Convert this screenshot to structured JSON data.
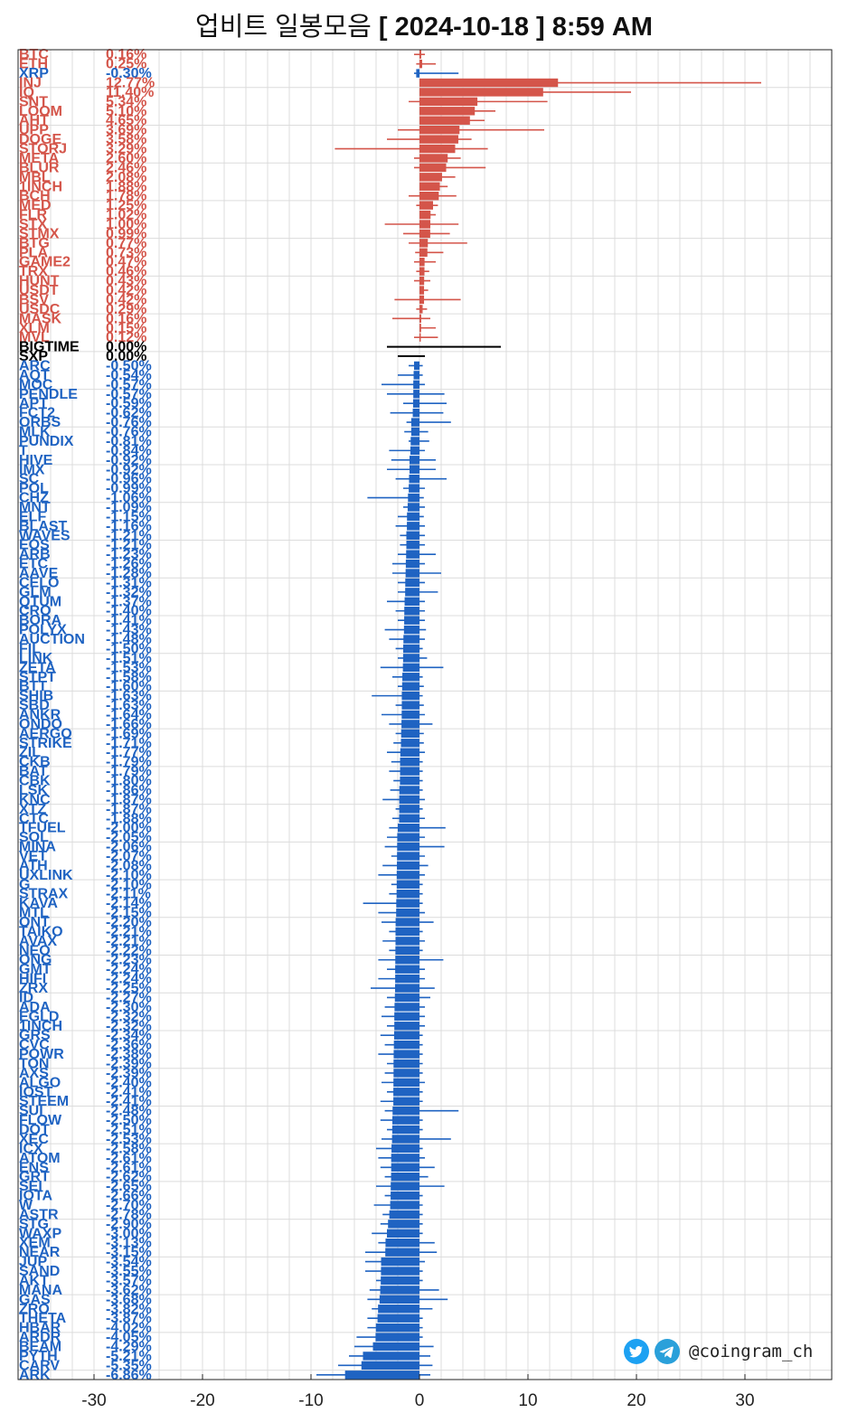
{
  "title": {
    "prefix": "업비트 일봉모음",
    "date_text": "[ 2024-10-18 ]  8:59 AM"
  },
  "brand": {
    "handle": "@coingram_ch",
    "icons": [
      "twitter-icon",
      "telegram-icon"
    ]
  },
  "colors": {
    "positive": "#d4554a",
    "negative": "#1f63c2",
    "neutral": "#000000",
    "grid": "#dcdcdc"
  },
  "chart_data": {
    "type": "bar",
    "orientation": "horizontal",
    "xlim": [
      -37,
      38
    ],
    "xticks": [
      -30,
      -20,
      -10,
      0,
      10,
      20,
      30
    ],
    "grid": true,
    "items": [
      {
        "name": "BTC",
        "pct": "0.16%",
        "value": 0.16,
        "low": -0.5,
        "high": 0.5
      },
      {
        "name": "ETH",
        "pct": "0.25%",
        "value": 0.25,
        "low": -0.3,
        "high": 1.5
      },
      {
        "name": "XRP",
        "pct": "-0.30%",
        "value": -0.3,
        "low": -0.5,
        "high": 3.6
      },
      {
        "name": "INJ",
        "pct": "12.77%",
        "value": 12.77,
        "low": 0,
        "high": 31.5
      },
      {
        "name": "IQ",
        "pct": "11.40%",
        "value": 11.4,
        "low": 0,
        "high": 19.5
      },
      {
        "name": "SNT",
        "pct": "5.34%",
        "value": 5.34,
        "low": -1.0,
        "high": 11.8
      },
      {
        "name": "LOOM",
        "pct": "5.10%",
        "value": 5.1,
        "low": 0,
        "high": 7.0
      },
      {
        "name": "AHT",
        "pct": "4.65%",
        "value": 4.65,
        "low": 0,
        "high": 6.0
      },
      {
        "name": "UPP",
        "pct": "3.69%",
        "value": 3.69,
        "low": -2.0,
        "high": 11.5
      },
      {
        "name": "DOGE",
        "pct": "3.58%",
        "value": 3.58,
        "low": -3.0,
        "high": 4.8
      },
      {
        "name": "STORJ",
        "pct": "3.29%",
        "value": 3.29,
        "low": -7.8,
        "high": 6.3
      },
      {
        "name": "META",
        "pct": "2.60%",
        "value": 2.6,
        "low": -0.5,
        "high": 3.8
      },
      {
        "name": "BLUR",
        "pct": "2.46%",
        "value": 2.46,
        "low": -0.5,
        "high": 6.1
      },
      {
        "name": "MBL",
        "pct": "2.08%",
        "value": 2.08,
        "low": 0,
        "high": 3.3
      },
      {
        "name": "1INCH",
        "pct": "1.88%",
        "value": 1.88,
        "low": 0,
        "high": 2.6
      },
      {
        "name": "BCH",
        "pct": "1.78%",
        "value": 1.78,
        "low": -1.0,
        "high": 3.4
      },
      {
        "name": "MED",
        "pct": "1.25%",
        "value": 1.25,
        "low": -0.3,
        "high": 1.7
      },
      {
        "name": "FLR",
        "pct": "1.02%",
        "value": 1.02,
        "low": 0,
        "high": 1.5
      },
      {
        "name": "STX",
        "pct": "1.00%",
        "value": 1.0,
        "low": -3.2,
        "high": 3.6
      },
      {
        "name": "STMX",
        "pct": "0.99%",
        "value": 0.99,
        "low": -1.5,
        "high": 2.8
      },
      {
        "name": "BTG",
        "pct": "0.77%",
        "value": 0.77,
        "low": -1.0,
        "high": 4.4
      },
      {
        "name": "PLA",
        "pct": "0.73%",
        "value": 0.73,
        "low": -0.4,
        "high": 2.2
      },
      {
        "name": "GAME2",
        "pct": "0.47%",
        "value": 0.47,
        "low": -0.5,
        "high": 1.5
      },
      {
        "name": "TRX",
        "pct": "0.46%",
        "value": 0.46,
        "low": -0.3,
        "high": 0.9
      },
      {
        "name": "HUNT",
        "pct": "0.43%",
        "value": 0.43,
        "low": -0.5,
        "high": 1.0
      },
      {
        "name": "USDT",
        "pct": "0.42%",
        "value": 0.42,
        "low": 0,
        "high": 0.8
      },
      {
        "name": "BSV",
        "pct": "0.42%",
        "value": 0.42,
        "low": -2.3,
        "high": 3.8
      },
      {
        "name": "USDC",
        "pct": "0.29%",
        "value": 0.29,
        "low": -0.3,
        "high": 0.7
      },
      {
        "name": "MASK",
        "pct": "0.16%",
        "value": 0.16,
        "low": -2.5,
        "high": 1.0
      },
      {
        "name": "XLM",
        "pct": "0.15%",
        "value": 0.15,
        "low": 0,
        "high": 1.5
      },
      {
        "name": "MVL",
        "pct": "0.12%",
        "value": 0.12,
        "low": -0.5,
        "high": 1.7
      },
      {
        "name": "BIGTIME",
        "pct": "0.00%",
        "value": 0.0,
        "low": -3.0,
        "high": 7.5
      },
      {
        "name": "SXP",
        "pct": "0.00%",
        "value": 0.0,
        "low": -2.0,
        "high": 0.5
      },
      {
        "name": "ARC",
        "pct": "-0.50%",
        "value": -0.5,
        "low": -1.0,
        "high": 0.3
      },
      {
        "name": "AQT",
        "pct": "-0.54%",
        "value": -0.54,
        "low": -2.0,
        "high": 0.3
      },
      {
        "name": "MOC",
        "pct": "-0.57%",
        "value": -0.57,
        "low": -3.5,
        "high": 0.5
      },
      {
        "name": "PENDLE",
        "pct": "-0.57%",
        "value": -0.57,
        "low": -3.0,
        "high": 2.3
      },
      {
        "name": "APT",
        "pct": "-0.59%",
        "value": -0.59,
        "low": -1.5,
        "high": 2.5
      },
      {
        "name": "FCT2",
        "pct": "-0.62%",
        "value": -0.62,
        "low": -2.7,
        "high": 2.2
      },
      {
        "name": "ORBS",
        "pct": "-0.76%",
        "value": -0.76,
        "low": -1.2,
        "high": 2.9
      },
      {
        "name": "MLK",
        "pct": "-0.76%",
        "value": -0.76,
        "low": -1.4,
        "high": 0.8
      },
      {
        "name": "PUNDIX",
        "pct": "-0.81%",
        "value": -0.81,
        "low": -1.0,
        "high": 0.9
      },
      {
        "name": "T",
        "pct": "-0.84%",
        "value": -0.84,
        "low": -2.8,
        "high": 0.5
      },
      {
        "name": "HIVE",
        "pct": "-0.92%",
        "value": -0.92,
        "low": -2.6,
        "high": 1.5
      },
      {
        "name": "IMX",
        "pct": "-0.92%",
        "value": -0.92,
        "low": -3.0,
        "high": 1.5
      },
      {
        "name": "SC",
        "pct": "-0.96%",
        "value": -0.96,
        "low": -2.2,
        "high": 2.5
      },
      {
        "name": "POL",
        "pct": "-0.99%",
        "value": -0.99,
        "low": -1.5,
        "high": 0.5
      },
      {
        "name": "CHZ",
        "pct": "-1.06%",
        "value": -1.06,
        "low": -4.8,
        "high": 0.4
      },
      {
        "name": "MNT",
        "pct": "-1.09%",
        "value": -1.09,
        "low": -1.5,
        "high": 0.5
      },
      {
        "name": "ELF",
        "pct": "-1.15%",
        "value": -1.15,
        "low": -2.0,
        "high": 0.4
      },
      {
        "name": "BLAST",
        "pct": "-1.16%",
        "value": -1.16,
        "low": -2.2,
        "high": 0.5
      },
      {
        "name": "WAVES",
        "pct": "-1.21%",
        "value": -1.21,
        "low": -1.8,
        "high": 0.5
      },
      {
        "name": "EOS",
        "pct": "-1.21%",
        "value": -1.21,
        "low": -1.8,
        "high": 0.5
      },
      {
        "name": "ARB",
        "pct": "-1.23%",
        "value": -1.23,
        "low": -2.0,
        "high": 1.5
      },
      {
        "name": "ETC",
        "pct": "-1.26%",
        "value": -1.26,
        "low": -2.5,
        "high": 0.5
      },
      {
        "name": "AAVE",
        "pct": "-1.28%",
        "value": -1.28,
        "low": -2.5,
        "high": 2.0
      },
      {
        "name": "CELO",
        "pct": "-1.31%",
        "value": -1.31,
        "low": -2.0,
        "high": 0.5
      },
      {
        "name": "GLM",
        "pct": "-1.32%",
        "value": -1.32,
        "low": -2.0,
        "high": 1.7
      },
      {
        "name": "QTUM",
        "pct": "-1.37%",
        "value": -1.37,
        "low": -3.0,
        "high": 0.5
      },
      {
        "name": "CRO",
        "pct": "-1.40%",
        "value": -1.4,
        "low": -2.2,
        "high": 0.5
      },
      {
        "name": "BORA",
        "pct": "-1.41%",
        "value": -1.41,
        "low": -2.0,
        "high": 0.5
      },
      {
        "name": "POLYX",
        "pct": "-1.43%",
        "value": -1.43,
        "low": -3.2,
        "high": 0.6
      },
      {
        "name": "AUCTION",
        "pct": "-1.48%",
        "value": -1.48,
        "low": -2.8,
        "high": 0.5
      },
      {
        "name": "FIL",
        "pct": "-1.50%",
        "value": -1.5,
        "low": -2.2,
        "high": 0.3
      },
      {
        "name": "LINK",
        "pct": "-1.51%",
        "value": -1.51,
        "low": -2.0,
        "high": 0.7
      },
      {
        "name": "ZETA",
        "pct": "-1.53%",
        "value": -1.53,
        "low": -3.6,
        "high": 2.2
      },
      {
        "name": "STPT",
        "pct": "-1.58%",
        "value": -1.58,
        "low": -2.5,
        "high": 0.3
      },
      {
        "name": "BTT",
        "pct": "-1.60%",
        "value": -1.6,
        "low": -2.0,
        "high": 0.4
      },
      {
        "name": "SHIB",
        "pct": "-1.63%",
        "value": -1.63,
        "low": -4.4,
        "high": 0.3
      },
      {
        "name": "SBD",
        "pct": "-1.63%",
        "value": -1.63,
        "low": -2.2,
        "high": 0.4
      },
      {
        "name": "ANKR",
        "pct": "-1.64%",
        "value": -1.64,
        "low": -3.5,
        "high": 0.5
      },
      {
        "name": "ONDO",
        "pct": "-1.66%",
        "value": -1.66,
        "low": -2.8,
        "high": 1.2
      },
      {
        "name": "AERGO",
        "pct": "-1.69%",
        "value": -1.69,
        "low": -2.2,
        "high": 0.4
      },
      {
        "name": "STRIKE",
        "pct": "-1.71%",
        "value": -1.71,
        "low": -2.4,
        "high": 0.4
      },
      {
        "name": "ZIL",
        "pct": "-1.77%",
        "value": -1.77,
        "low": -3.0,
        "high": 0.5
      },
      {
        "name": "CKB",
        "pct": "-1.79%",
        "value": -1.79,
        "low": -2.6,
        "high": 0.3
      },
      {
        "name": "BAT",
        "pct": "-1.79%",
        "value": -1.79,
        "low": -2.8,
        "high": 0.3
      },
      {
        "name": "CBK",
        "pct": "-1.80%",
        "value": -1.8,
        "low": -2.4,
        "high": 0.3
      },
      {
        "name": "LSK",
        "pct": "-1.86%",
        "value": -1.86,
        "low": -2.7,
        "high": 0.3
      },
      {
        "name": "KNC",
        "pct": "-1.87%",
        "value": -1.87,
        "low": -3.4,
        "high": 0.5
      },
      {
        "name": "XTZ",
        "pct": "-1.87%",
        "value": -1.87,
        "low": -2.2,
        "high": 0.3
      },
      {
        "name": "CTC",
        "pct": "-1.88%",
        "value": -1.88,
        "low": -2.5,
        "high": 0.5
      },
      {
        "name": "TFUEL",
        "pct": "-2.00%",
        "value": -2.0,
        "low": -2.8,
        "high": 2.4
      },
      {
        "name": "SOL",
        "pct": "-2.05%",
        "value": -2.05,
        "low": -3.0,
        "high": 0.5
      },
      {
        "name": "MINA",
        "pct": "-2.06%",
        "value": -2.06,
        "low": -3.2,
        "high": 2.3
      },
      {
        "name": "VET",
        "pct": "-2.07%",
        "value": -2.07,
        "low": -2.6,
        "high": 0.5
      },
      {
        "name": "ATH",
        "pct": "-2.08%",
        "value": -2.08,
        "low": -3.4,
        "high": 0.8
      },
      {
        "name": "UXLINK",
        "pct": "-2.10%",
        "value": -2.1,
        "low": -3.8,
        "high": 0.5
      },
      {
        "name": "G",
        "pct": "-2.10%",
        "value": -2.1,
        "low": -2.6,
        "high": 0.3
      },
      {
        "name": "STRAX",
        "pct": "-2.11%",
        "value": -2.11,
        "low": -2.8,
        "high": 0.3
      },
      {
        "name": "KAVA",
        "pct": "-2.14%",
        "value": -2.14,
        "low": -5.2,
        "high": 0.3
      },
      {
        "name": "MTL",
        "pct": "-2.15%",
        "value": -2.15,
        "low": -3.8,
        "high": 0.5
      },
      {
        "name": "ONT",
        "pct": "-2.20%",
        "value": -2.2,
        "low": -3.5,
        "high": 1.3
      },
      {
        "name": "TAIKO",
        "pct": "-2.21%",
        "value": -2.21,
        "low": -2.8,
        "high": 0.3
      },
      {
        "name": "AVAX",
        "pct": "-2.21%",
        "value": -2.21,
        "low": -3.4,
        "high": 0.5
      },
      {
        "name": "NEO",
        "pct": "-2.22%",
        "value": -2.22,
        "low": -2.8,
        "high": 0.3
      },
      {
        "name": "ONG",
        "pct": "-2.23%",
        "value": -2.23,
        "low": -3.8,
        "high": 2.2
      },
      {
        "name": "GMT",
        "pct": "-2.24%",
        "value": -2.24,
        "low": -3.0,
        "high": 0.5
      },
      {
        "name": "HIFI",
        "pct": "-2.24%",
        "value": -2.24,
        "low": -3.8,
        "high": 0.5
      },
      {
        "name": "ZRX",
        "pct": "-2.25%",
        "value": -2.25,
        "low": -4.5,
        "high": 1.4
      },
      {
        "name": "ID",
        "pct": "-2.27%",
        "value": -2.27,
        "low": -3.0,
        "high": 1.0
      },
      {
        "name": "ADA",
        "pct": "-2.30%",
        "value": -2.3,
        "low": -3.2,
        "high": 0.5
      },
      {
        "name": "EGLD",
        "pct": "-2.32%",
        "value": -2.32,
        "low": -3.5,
        "high": 0.5
      },
      {
        "name": "1INCH",
        "pct": "-2.32%",
        "value": -2.32,
        "low": -3.0,
        "high": 0.5
      },
      {
        "name": "GRS",
        "pct": "-2.34%",
        "value": -2.34,
        "low": -3.6,
        "high": 0.3
      },
      {
        "name": "CVC",
        "pct": "-2.36%",
        "value": -2.36,
        "low": -3.2,
        "high": 0.3
      },
      {
        "name": "POWR",
        "pct": "-2.38%",
        "value": -2.38,
        "low": -3.8,
        "high": 0.3
      },
      {
        "name": "TON",
        "pct": "-2.39%",
        "value": -2.39,
        "low": -3.0,
        "high": 0.3
      },
      {
        "name": "AXS",
        "pct": "-2.39%",
        "value": -2.39,
        "low": -3.2,
        "high": 0.3
      },
      {
        "name": "ALGO",
        "pct": "-2.40%",
        "value": -2.4,
        "low": -3.5,
        "high": 0.5
      },
      {
        "name": "IOST",
        "pct": "-2.41%",
        "value": -2.41,
        "low": -3.0,
        "high": 0.3
      },
      {
        "name": "STEEM",
        "pct": "-2.41%",
        "value": -2.41,
        "low": -3.6,
        "high": 0.3
      },
      {
        "name": "SUI",
        "pct": "-2.48%",
        "value": -2.48,
        "low": -3.2,
        "high": 3.6
      },
      {
        "name": "FLOW",
        "pct": "-2.50%",
        "value": -2.5,
        "low": -3.6,
        "high": 0.3
      },
      {
        "name": "DOT",
        "pct": "-2.51%",
        "value": -2.51,
        "low": -3.0,
        "high": 0.3
      },
      {
        "name": "XEC",
        "pct": "-2.53%",
        "value": -2.53,
        "low": -3.5,
        "high": 2.9
      },
      {
        "name": "ICX",
        "pct": "-2.58%",
        "value": -2.58,
        "low": -4.0,
        "high": 0.3
      },
      {
        "name": "ATOM",
        "pct": "-2.61%",
        "value": -2.61,
        "low": -3.8,
        "high": 0.5
      },
      {
        "name": "ENS",
        "pct": "-2.61%",
        "value": -2.61,
        "low": -3.6,
        "high": 1.4
      },
      {
        "name": "GRT",
        "pct": "-2.62%",
        "value": -2.62,
        "low": -3.2,
        "high": 0.8
      },
      {
        "name": "SEI",
        "pct": "-2.65%",
        "value": -2.65,
        "low": -4.0,
        "high": 2.3
      },
      {
        "name": "IOTA",
        "pct": "-2.66%",
        "value": -2.66,
        "low": -3.2,
        "high": 0.3
      },
      {
        "name": "W",
        "pct": "-2.70%",
        "value": -2.7,
        "low": -4.2,
        "high": 0.3
      },
      {
        "name": "ASTR",
        "pct": "-2.78%",
        "value": -2.78,
        "low": -3.4,
        "high": 0.3
      },
      {
        "name": "STG",
        "pct": "-2.90%",
        "value": -2.9,
        "low": -3.6,
        "high": 0.3
      },
      {
        "name": "WAXP",
        "pct": "-3.00%",
        "value": -3.0,
        "low": -4.4,
        "high": 0.3
      },
      {
        "name": "XEM",
        "pct": "-3.13%",
        "value": -3.13,
        "low": -3.8,
        "high": 1.4
      },
      {
        "name": "NEAR",
        "pct": "-3.15%",
        "value": -3.15,
        "low": -5.0,
        "high": 1.6
      },
      {
        "name": "JUP",
        "pct": "-3.54%",
        "value": -3.54,
        "low": -5.0,
        "high": 0.5
      },
      {
        "name": "SAND",
        "pct": "-3.55%",
        "value": -3.55,
        "low": -5.0,
        "high": 0.3
      },
      {
        "name": "AKT",
        "pct": "-3.57%",
        "value": -3.57,
        "low": -4.0,
        "high": 0.3
      },
      {
        "name": "MANA",
        "pct": "-3.62%",
        "value": -3.62,
        "low": -4.6,
        "high": 1.8
      },
      {
        "name": "GAS",
        "pct": "-3.68%",
        "value": -3.68,
        "low": -4.8,
        "high": 2.6
      },
      {
        "name": "ZRO",
        "pct": "-3.82%",
        "value": -3.82,
        "low": -4.4,
        "high": 1.2
      },
      {
        "name": "THETA",
        "pct": "-3.87%",
        "value": -3.87,
        "low": -4.8,
        "high": 0.3
      },
      {
        "name": "HBAR",
        "pct": "-4.02%",
        "value": -4.02,
        "low": -4.8,
        "high": 0.3
      },
      {
        "name": "ARDR",
        "pct": "-4.05%",
        "value": -4.05,
        "low": -5.8,
        "high": 0.3
      },
      {
        "name": "BEAM",
        "pct": "-4.29%",
        "value": -4.29,
        "low": -6.0,
        "high": 1.3
      },
      {
        "name": "PYTH",
        "pct": "-5.21%",
        "value": -5.21,
        "low": -6.5,
        "high": 1.0
      },
      {
        "name": "CARV",
        "pct": "-5.35%",
        "value": -5.35,
        "low": -7.5,
        "high": 1.2
      },
      {
        "name": "ARK",
        "pct": "-6.86%",
        "value": -6.86,
        "low": -9.5,
        "high": 1.0
      }
    ]
  }
}
